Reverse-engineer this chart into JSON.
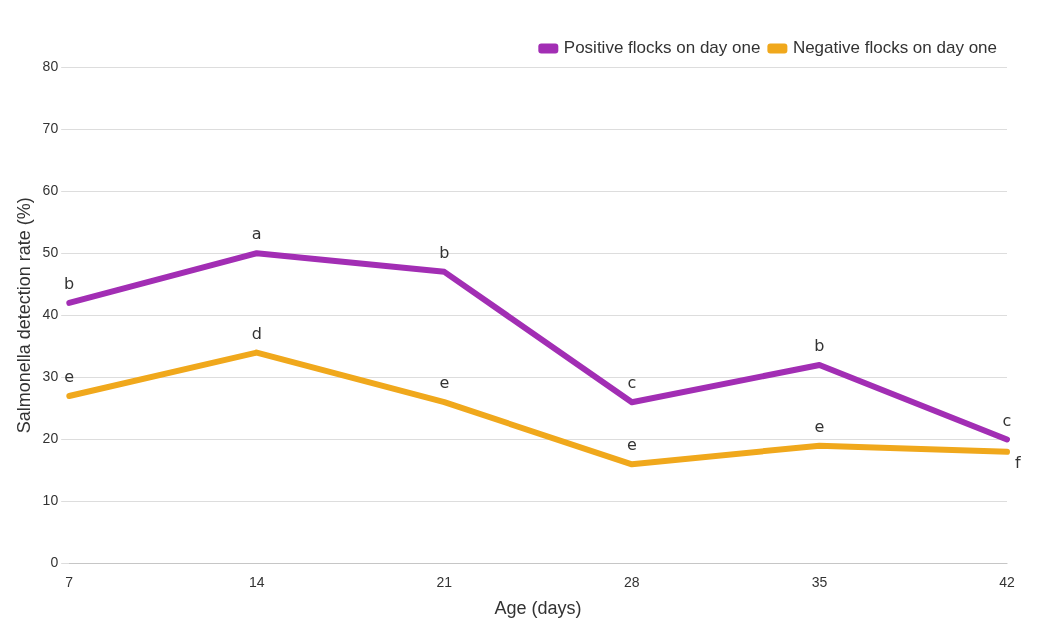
{
  "chart_data": {
    "type": "line",
    "xlabel": "Age (days)",
    "ylabel": "Salmonella detection rate (%)",
    "categories": [
      "7",
      "14",
      "21",
      "28",
      "35",
      "42"
    ],
    "series": [
      {
        "name": "Positive flocks on day one",
        "color": "#a22eb4",
        "values": [
          42,
          50,
          47,
          26,
          32,
          20
        ]
      },
      {
        "name": "Negative flocks on day one",
        "color": "#f0a81c",
        "values": [
          27,
          34,
          26,
          16,
          19,
          18
        ]
      }
    ],
    "ylim": [
      0,
      80
    ],
    "yticks": [
      0,
      10,
      20,
      30,
      40,
      50,
      60,
      70,
      80
    ],
    "grid": "y",
    "legend": "top right",
    "marker": "none",
    "line_style": "solid",
    "annotations": [
      {
        "text": "b",
        "x": "7",
        "y": 42
      },
      {
        "text": "a",
        "x": "14",
        "y": 50
      },
      {
        "text": "b",
        "x": "21",
        "y": 47
      },
      {
        "text": "c",
        "x": "28",
        "y": 26
      },
      {
        "text": "b",
        "x": "35",
        "y": 32
      },
      {
        "text": "c",
        "x": "42",
        "y": 20
      },
      {
        "text": "e",
        "x": "7",
        "y": 27
      },
      {
        "text": "d",
        "x": "14",
        "y": 34
      },
      {
        "text": "e",
        "x": "21",
        "y": 26
      },
      {
        "text": "e",
        "x": "28",
        "y": 16
      },
      {
        "text": "e",
        "x": "35",
        "y": 19
      },
      {
        "text": "f",
        "x": "42",
        "y": 18
      }
    ]
  }
}
